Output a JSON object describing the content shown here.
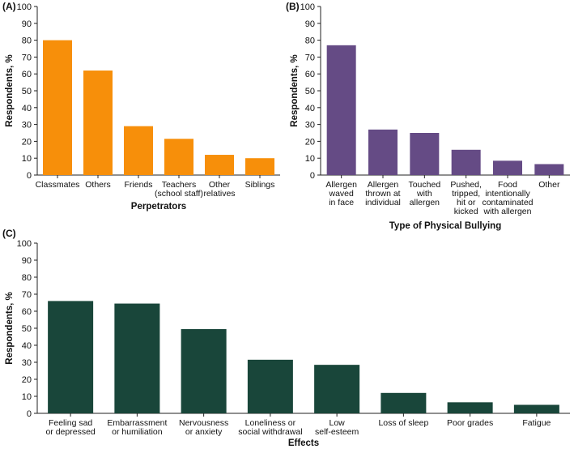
{
  "chart_data": [
    {
      "type": "bar",
      "panel_label": "(A)",
      "title": "",
      "xlabel": "Perpetrators",
      "ylabel": "Respondents, %",
      "ylim": [
        0,
        100
      ],
      "yticks": [
        0,
        10,
        20,
        30,
        40,
        50,
        60,
        70,
        80,
        90,
        100
      ],
      "color": "#f78f0a",
      "grid": false,
      "categories": [
        [
          "Classmates"
        ],
        [
          "Others"
        ],
        [
          "Friends"
        ],
        [
          "Teachers",
          "(school staff)"
        ],
        [
          "Other",
          "relatives"
        ],
        [
          "Siblings"
        ]
      ],
      "values": [
        80,
        62,
        29,
        21.5,
        12,
        10
      ]
    },
    {
      "type": "bar",
      "panel_label": "(B)",
      "title": "",
      "xlabel": "Type of Physical Bullying",
      "ylabel": "Respondents, %",
      "ylim": [
        0,
        100
      ],
      "yticks": [
        0,
        10,
        20,
        30,
        40,
        50,
        60,
        70,
        80,
        90,
        100
      ],
      "color": "#654b85",
      "grid": false,
      "categories": [
        [
          "Allergen",
          "waved",
          "in face"
        ],
        [
          "Allergen",
          "thrown at",
          "individual"
        ],
        [
          "Touched",
          "with",
          "allergen"
        ],
        [
          "Pushed,",
          "tripped,",
          "hit or",
          "kicked"
        ],
        [
          "Food",
          "intentionally",
          "contaminated",
          "with allergen"
        ],
        [
          "Other"
        ]
      ],
      "values": [
        77,
        27,
        25,
        15,
        8.5,
        6.5
      ]
    },
    {
      "type": "bar",
      "panel_label": "(C)",
      "title": "",
      "xlabel": "Effects",
      "ylabel": "Respondents, %",
      "ylim": [
        0,
        100
      ],
      "yticks": [
        0,
        10,
        20,
        30,
        40,
        50,
        60,
        70,
        80,
        90,
        100
      ],
      "color": "#19463a",
      "grid": false,
      "categories": [
        [
          "Feeling sad",
          "or depressed"
        ],
        [
          "Embarrassment",
          "or humiliation"
        ],
        [
          "Nervousness",
          "or anxiety"
        ],
        [
          "Loneliness or",
          "social withdrawal"
        ],
        [
          "Low",
          "self-esteem"
        ],
        [
          "Loss of sleep"
        ],
        [
          "Poor grades"
        ],
        [
          "Fatigue"
        ]
      ],
      "values": [
        66,
        64.5,
        49.5,
        31.5,
        28.5,
        12,
        6.5,
        5
      ]
    }
  ]
}
